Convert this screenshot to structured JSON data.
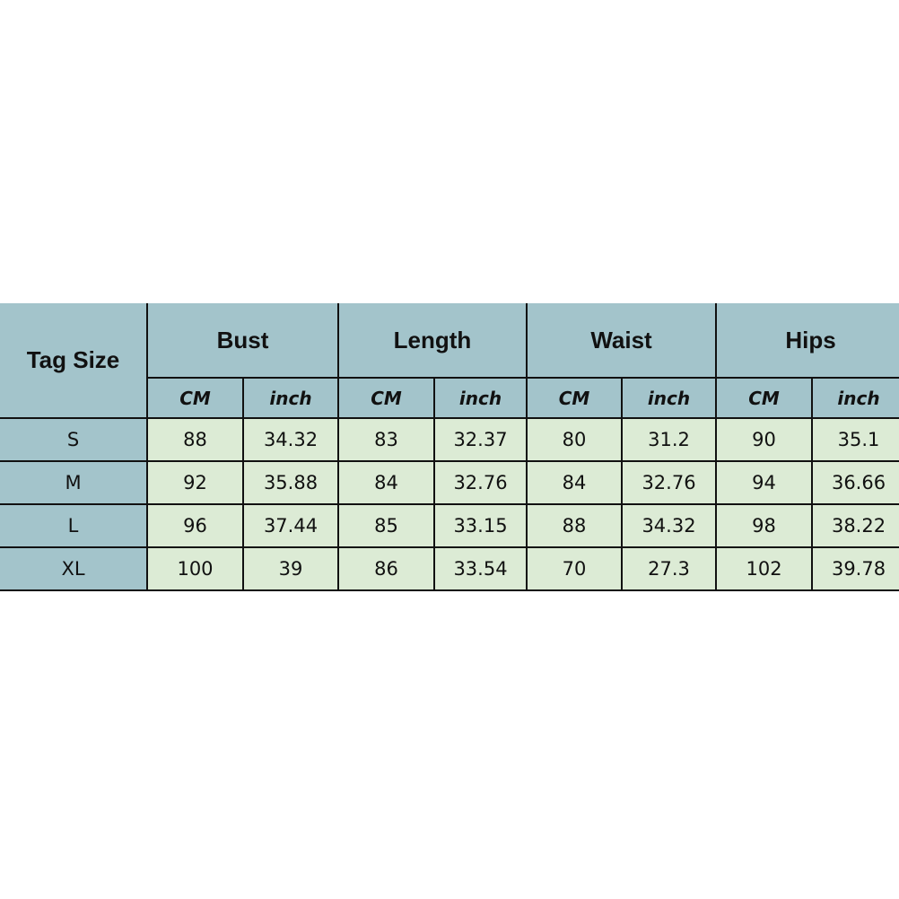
{
  "table": {
    "corner": "Tag Size",
    "groups": [
      "Bust",
      "Length",
      "Waist",
      "Hips"
    ],
    "units": [
      "CM",
      "inch"
    ],
    "rows": [
      {
        "size": "S",
        "values": [
          "88",
          "34.32",
          "83",
          "32.37",
          "80",
          "31.2",
          "90",
          "35.1"
        ]
      },
      {
        "size": "M",
        "values": [
          "92",
          "35.88",
          "84",
          "32.76",
          "84",
          "32.76",
          "94",
          "36.66"
        ]
      },
      {
        "size": "L",
        "values": [
          "96",
          "37.44",
          "85",
          "33.15",
          "88",
          "34.32",
          "98",
          "38.22"
        ]
      },
      {
        "size": "XL",
        "values": [
          "100",
          "39",
          "86",
          "33.54",
          "70",
          "27.3",
          "102",
          "39.78"
        ]
      }
    ]
  },
  "colors": {
    "header": "#a3c4cb",
    "body": "#dcebd5",
    "border": "#111111"
  }
}
